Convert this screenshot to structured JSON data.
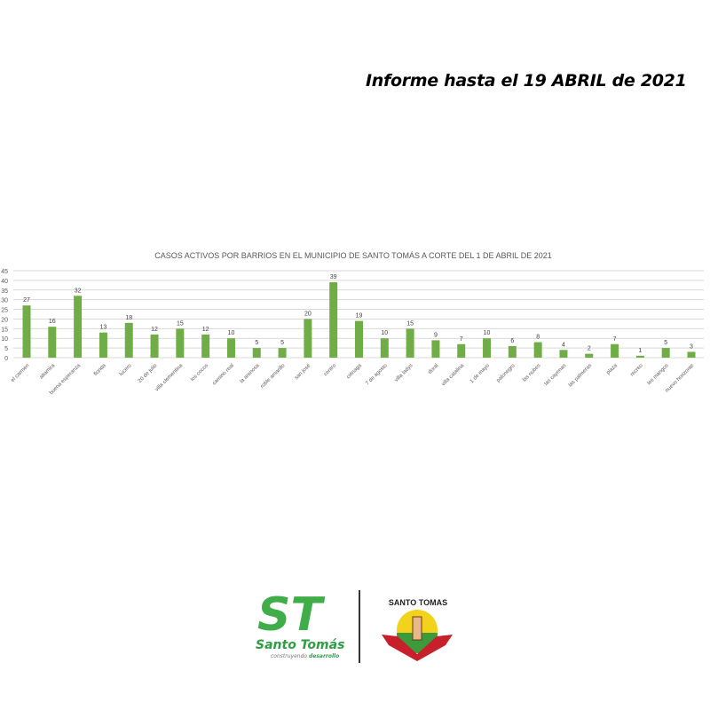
{
  "header": {
    "report_title": "Informe hasta el 19 ABRIL de 2021"
  },
  "chart_data": {
    "type": "bar",
    "title": "CASOS ACTIVOS POR BARRIOS EN EL MUNICIPIO DE SANTO TOMÁS A CORTE DEL 1 DE ABRIL DE 2021",
    "categories": [
      "el carmen",
      "altamira",
      "buena esperanza",
      "florida",
      "lucero",
      "20 de julio",
      "villa clementina",
      "los cocos",
      "camino real",
      "la arenosa",
      "roble amarillo",
      "san josé",
      "centro",
      "ciénaga",
      "7 de agosto",
      "villa ladys",
      "doral",
      "villa catalina",
      "1 de mayo",
      "palonegro",
      "las nubes",
      "las cayenas",
      "las palmeras",
      "plaza",
      "recreo",
      "los mangos",
      "nuevo horizonte"
    ],
    "values": [
      27,
      16,
      32,
      13,
      18,
      12,
      15,
      12,
      10,
      5,
      5,
      20,
      39,
      19,
      10,
      15,
      9,
      7,
      10,
      6,
      8,
      4,
      2,
      7,
      1,
      5,
      3
    ],
    "ylim": [
      0,
      45
    ],
    "yticks": [
      0,
      5,
      10,
      15,
      20,
      25,
      30,
      35,
      40,
      45
    ],
    "grid": true,
    "bar_color": "#70ad47",
    "data_labels": true
  },
  "logos": {
    "left": {
      "text": "Santo Tomás",
      "tagline_1": "construyendo",
      "tagline_2": "desarrollo",
      "monogram": "ST"
    },
    "right": {
      "text": "SANTO TOMAS"
    }
  }
}
